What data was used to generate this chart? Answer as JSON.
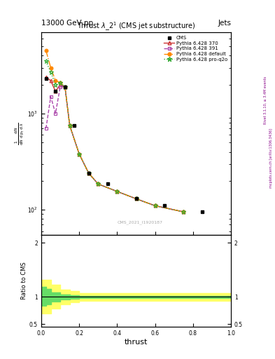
{
  "title": "Thrust $\\lambda\\_2^1$ (CMS jet substructure)",
  "header_left": "13000 GeV pp",
  "header_right": "Jets",
  "watermark": "CMS_2021_I1920187",
  "rivet_label": "Rivet 3.1.10, ≥ 3.4M events",
  "arxiv_label": "mcplots.cern.ch [arXiv:1306.3436]",
  "ylabel_main": "1 / $\\mathrm{d}N$ / $\\mathrm{d}\\lambda$",
  "ylabel_ratio": "Ratio to CMS",
  "xlabel": "thrust",
  "thrust_x": [
    0.025,
    0.05,
    0.075,
    0.1,
    0.125,
    0.15,
    0.2,
    0.25,
    0.3,
    0.4,
    0.5,
    0.6,
    0.75
  ],
  "p370_y": [
    2400,
    2200,
    1700,
    2000,
    1900,
    750,
    380,
    240,
    185,
    155,
    130,
    110,
    95
  ],
  "p391_y": [
    700,
    1500,
    1000,
    1900,
    1900,
    750,
    380,
    240,
    185,
    155,
    130,
    110,
    95
  ],
  "pdef_y": [
    4500,
    3000,
    2200,
    2100,
    1900,
    750,
    380,
    240,
    185,
    155,
    130,
    110,
    95
  ],
  "pproq2o_y": [
    3500,
    2700,
    2000,
    2100,
    1900,
    750,
    380,
    240,
    185,
    155,
    130,
    110,
    95
  ],
  "cms_x": [
    0.025,
    0.075,
    0.125,
    0.175,
    0.25,
    0.35,
    0.5,
    0.65,
    0.85
  ],
  "cms_y": [
    2300,
    1700,
    1900,
    750,
    240,
    185,
    130,
    110,
    95
  ],
  "color_cms": "#000000",
  "color_p370": "#cc3333",
  "color_p391": "#aa44aa",
  "color_pdef": "#ff8800",
  "color_pproq2o": "#33aa33",
  "ylim_main": [
    55,
    7000
  ],
  "ylim_ratio": [
    0.45,
    2.15
  ],
  "xlim": [
    0.0,
    1.0
  ],
  "yellow_x": [
    0.0,
    0.025,
    0.05,
    0.1,
    0.15,
    0.2,
    1.0
  ],
  "yellow_ylo": [
    0.7,
    0.7,
    0.79,
    0.87,
    0.9,
    0.93,
    0.95
  ],
  "yellow_yhi": [
    1.32,
    1.32,
    1.23,
    1.14,
    1.11,
    1.07,
    1.05
  ],
  "green_x": [
    0.0,
    0.025,
    0.05,
    0.1,
    0.15,
    0.2,
    1.0
  ],
  "green_ylo": [
    0.84,
    0.87,
    0.92,
    0.96,
    0.97,
    0.98,
    0.985
  ],
  "green_yhi": [
    1.19,
    1.15,
    1.09,
    1.04,
    1.03,
    1.02,
    1.015
  ]
}
